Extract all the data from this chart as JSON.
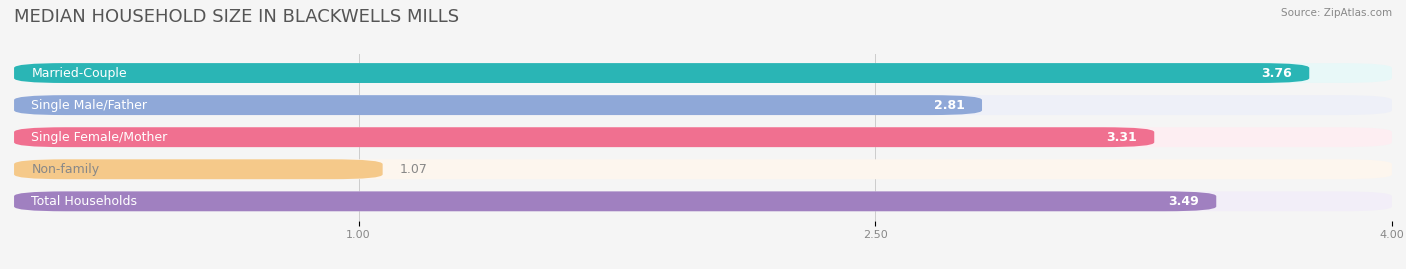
{
  "title": "MEDIAN HOUSEHOLD SIZE IN BLACKWELLS MILLS",
  "source": "Source: ZipAtlas.com",
  "categories": [
    "Married-Couple",
    "Single Male/Father",
    "Single Female/Mother",
    "Non-family",
    "Total Households"
  ],
  "values": [
    3.76,
    2.81,
    3.31,
    1.07,
    3.49
  ],
  "bar_colors": [
    "#2ab5b5",
    "#8fa8d8",
    "#f07090",
    "#f5c98a",
    "#a080c0"
  ],
  "bar_bg_colors": [
    "#e8f8f8",
    "#eef0f8",
    "#fdeef2",
    "#fdf6ee",
    "#f2eef8"
  ],
  "xlim": [
    0,
    4.0
  ],
  "xticks": [
    1.0,
    2.5,
    4.0
  ],
  "background_color": "#f5f5f5",
  "title_fontsize": 13,
  "label_fontsize": 9,
  "value_fontsize": 9
}
